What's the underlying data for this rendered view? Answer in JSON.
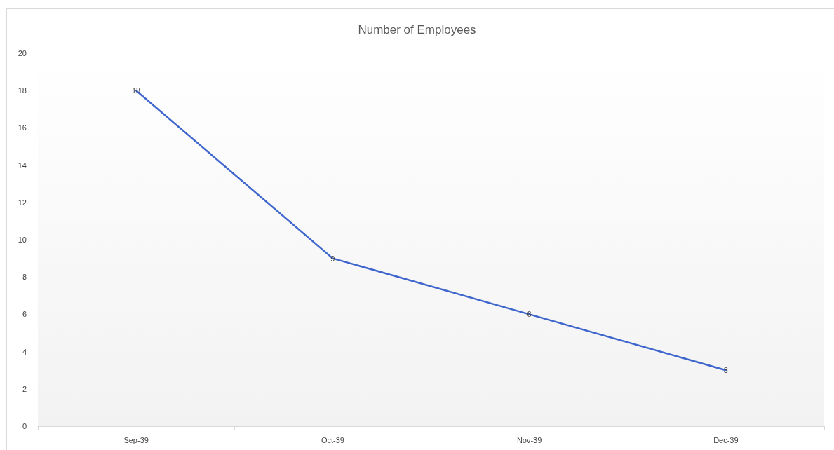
{
  "chart_data": {
    "type": "line",
    "title": "Number of Employees",
    "categories": [
      "Sep-39",
      "Oct-39",
      "Nov-39",
      "Dec-39"
    ],
    "values": [
      18,
      9,
      6,
      3
    ],
    "color": "#3f66cc",
    "ylim": [
      0,
      20
    ],
    "yticks": [
      0,
      2,
      4,
      6,
      8,
      10,
      12,
      14,
      16,
      18,
      20
    ],
    "grid": false,
    "data_labels": true,
    "marker": "none",
    "line_style": "solid"
  }
}
